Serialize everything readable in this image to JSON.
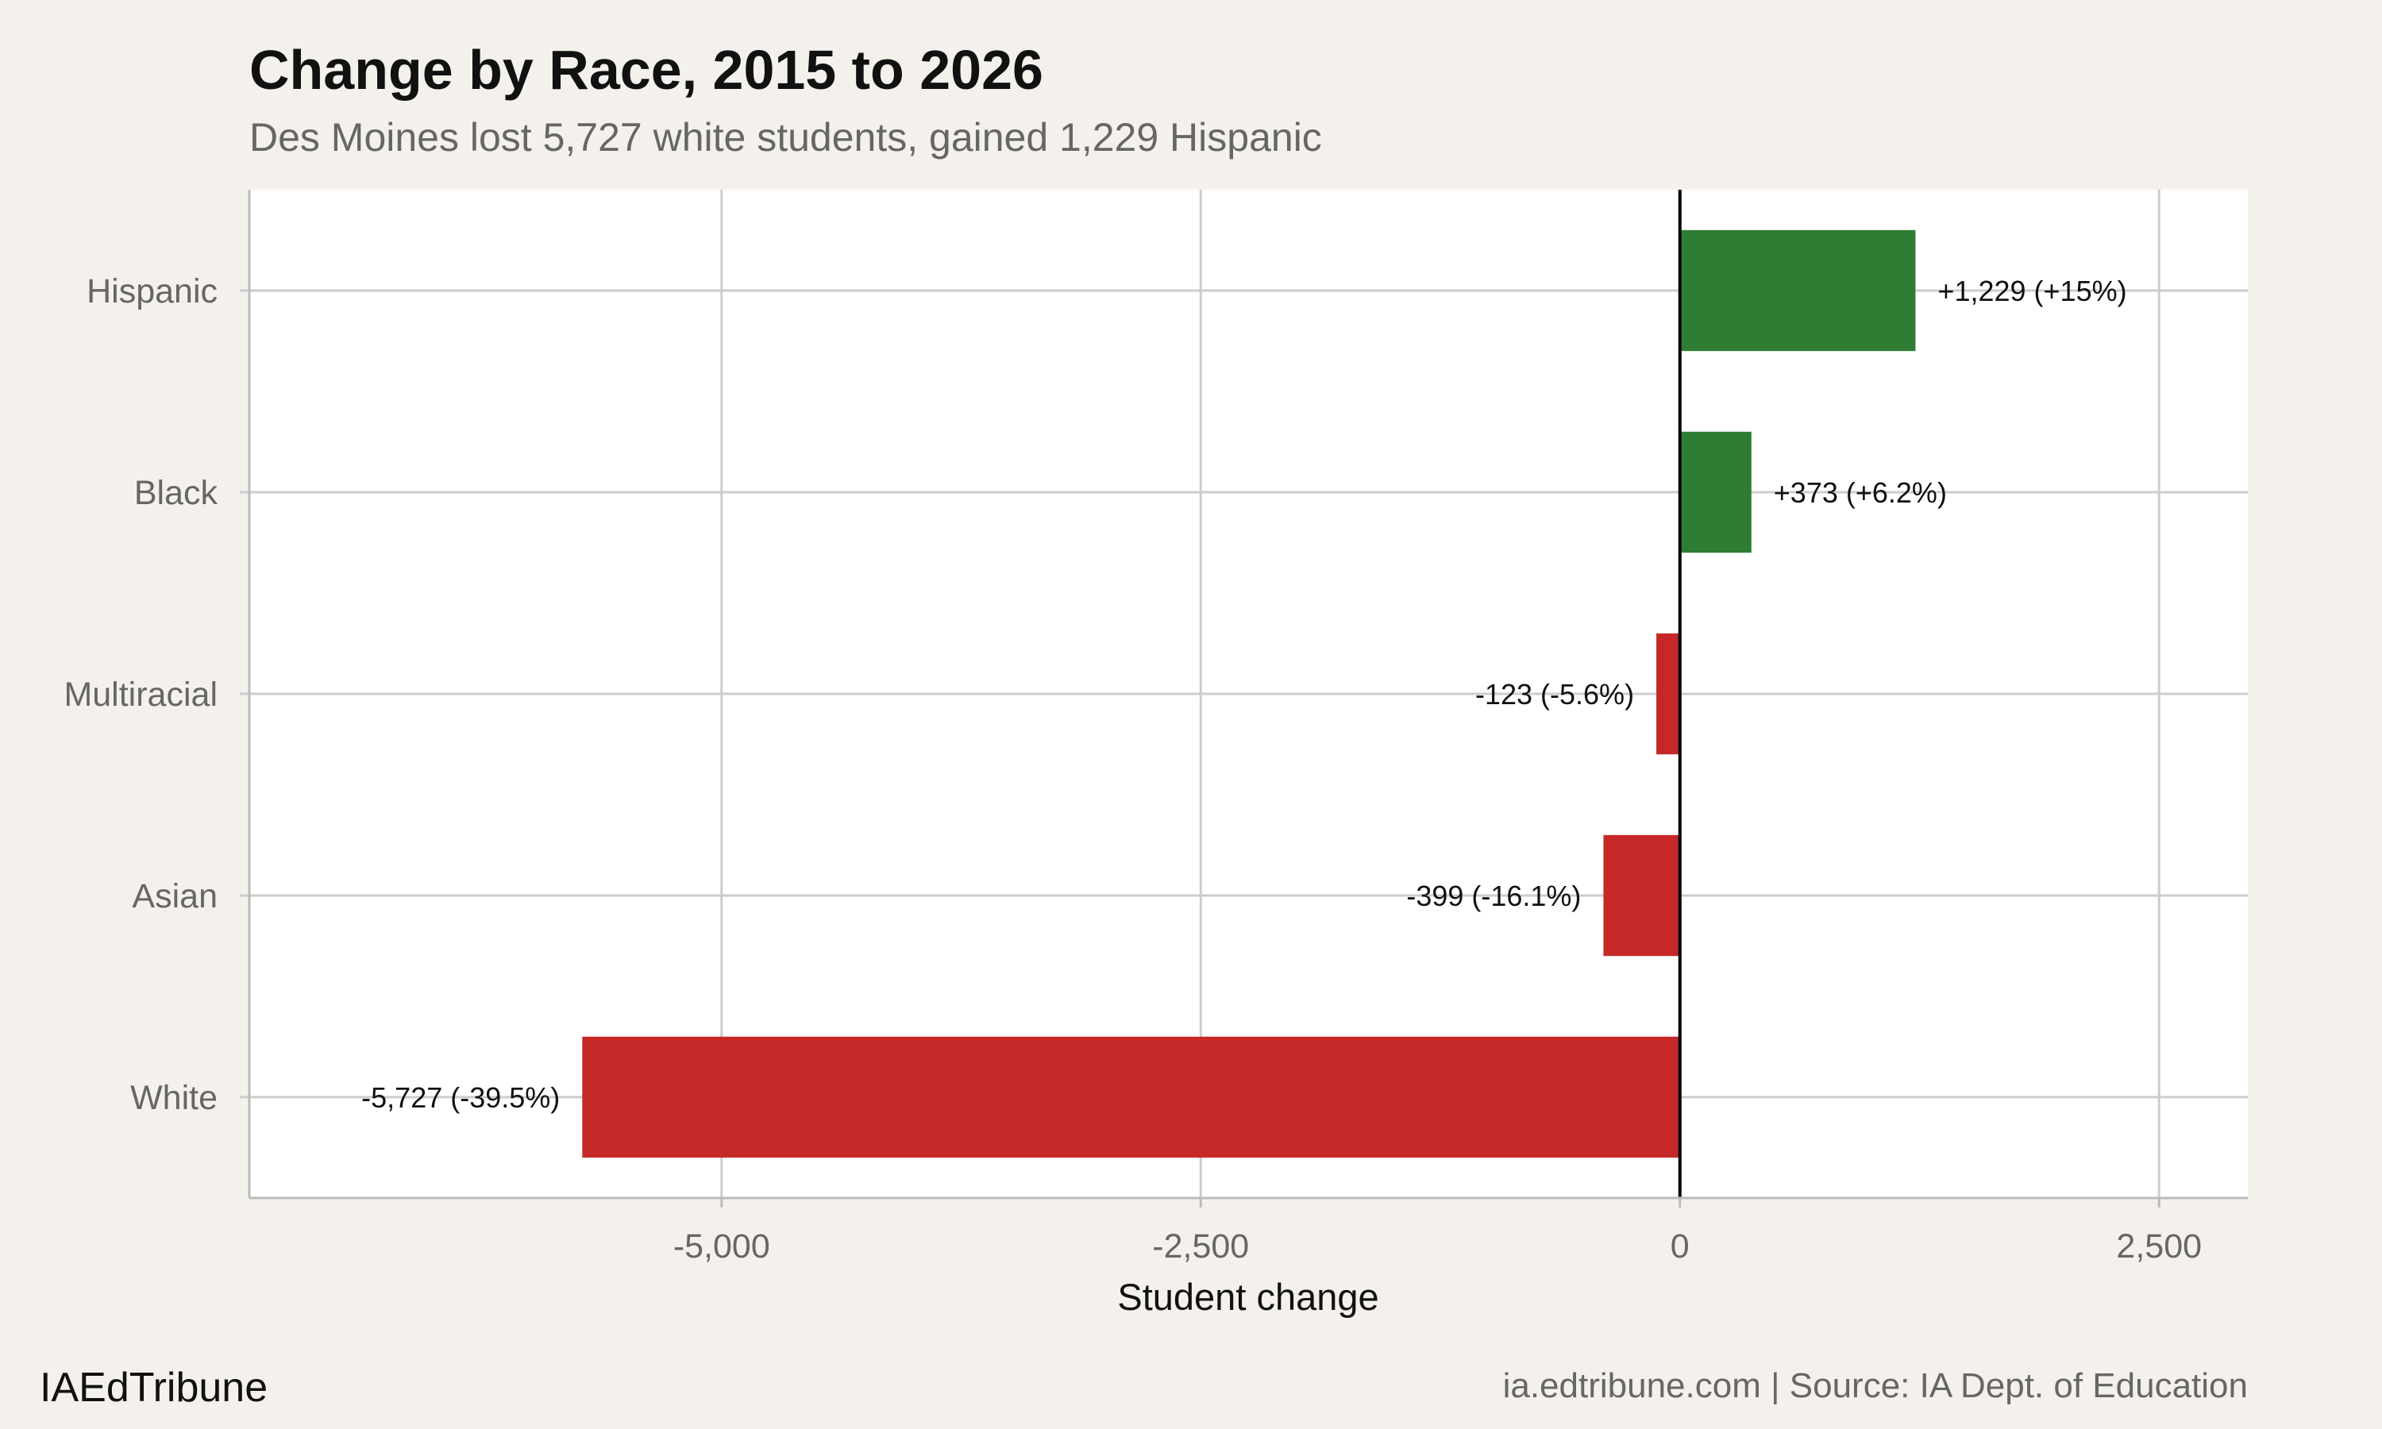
{
  "chart_data": {
    "type": "bar",
    "orientation": "horizontal",
    "title": "Change by Race, 2015 to 2026",
    "subtitle": "Des Moines lost 5,727 white students, gained 1,229 Hispanic",
    "xlabel": "Student change",
    "ylabel": "",
    "categories": [
      "Hispanic",
      "Black",
      "Multiracial",
      "Asian",
      "White"
    ],
    "values": [
      1229,
      373,
      -123,
      -399,
      -5727
    ],
    "data_labels": [
      "+1,229 (+15%)",
      "+373 (+6.2%)",
      "-123 (-5.6%)",
      "-399 (-16.1%)",
      "-5,727 (-39.5%)"
    ],
    "xlim": [
      -7464,
      2963
    ],
    "xticks": [
      -5000,
      -2500,
      0,
      2500
    ],
    "xtick_labels": [
      "-5,000",
      "-2,500",
      "0",
      "2,500"
    ],
    "grid": true,
    "colors": {
      "positive": "#2e7d32",
      "negative": "#c62828",
      "zero_line": "#000000",
      "grid": "#cccccc",
      "background": "#f4f1ec",
      "panel": "#ffffff"
    }
  },
  "footer": {
    "brand": "IAEdTribune",
    "source": "ia.edtribune.com | Source: IA Dept. of Education"
  }
}
